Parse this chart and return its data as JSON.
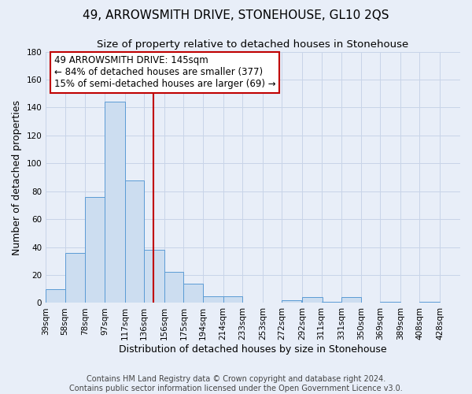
{
  "title": "49, ARROWSMITH DRIVE, STONEHOUSE, GL10 2QS",
  "subtitle": "Size of property relative to detached houses in Stonehouse",
  "xlabel": "Distribution of detached houses by size in Stonehouse",
  "ylabel": "Number of detached properties",
  "footer_line1": "Contains HM Land Registry data © Crown copyright and database right 2024.",
  "footer_line2": "Contains public sector information licensed under the Open Government Licence v3.0.",
  "annotation_line1": "49 ARROWSMITH DRIVE: 145sqm",
  "annotation_line2": "← 84% of detached houses are smaller (377)",
  "annotation_line3": "15% of semi-detached houses are larger (69) →",
  "bar_left_edges": [
    39,
    58,
    78,
    97,
    117,
    136,
    156,
    175,
    194,
    214,
    233,
    253,
    272,
    292,
    311,
    331,
    350,
    369,
    389,
    408
  ],
  "bar_widths": [
    19,
    20,
    19,
    20,
    19,
    20,
    19,
    19,
    20,
    19,
    20,
    19,
    19,
    20,
    19,
    19,
    19,
    20,
    19,
    20
  ],
  "bar_heights": [
    10,
    36,
    76,
    144,
    88,
    38,
    22,
    14,
    5,
    5,
    0,
    0,
    2,
    4,
    1,
    4,
    0,
    1,
    0,
    1
  ],
  "tick_labels": [
    "39sqm",
    "58sqm",
    "78sqm",
    "97sqm",
    "117sqm",
    "136sqm",
    "156sqm",
    "175sqm",
    "194sqm",
    "214sqm",
    "233sqm",
    "253sqm",
    "272sqm",
    "292sqm",
    "311sqm",
    "331sqm",
    "350sqm",
    "369sqm",
    "389sqm",
    "408sqm",
    "428sqm"
  ],
  "tick_positions": [
    39,
    58,
    78,
    97,
    117,
    136,
    156,
    175,
    194,
    214,
    233,
    253,
    272,
    292,
    311,
    331,
    350,
    369,
    389,
    408,
    428
  ],
  "bar_color": "#ccddf0",
  "bar_edge_color": "#5b9bd5",
  "vline_x": 145,
  "vline_color": "#c00000",
  "annotation_box_edge_color": "#c00000",
  "annotation_box_face_color": "#ffffff",
  "ylim": [
    0,
    180
  ],
  "yticks": [
    0,
    20,
    40,
    60,
    80,
    100,
    120,
    140,
    160,
    180
  ],
  "xlim_min": 39,
  "xlim_max": 448,
  "grid_color": "#c8d4e8",
  "background_color": "#e8eef8",
  "title_fontsize": 11,
  "subtitle_fontsize": 9.5,
  "axis_label_fontsize": 9,
  "tick_fontsize": 7.5,
  "annotation_fontsize": 8.5,
  "footer_fontsize": 7
}
